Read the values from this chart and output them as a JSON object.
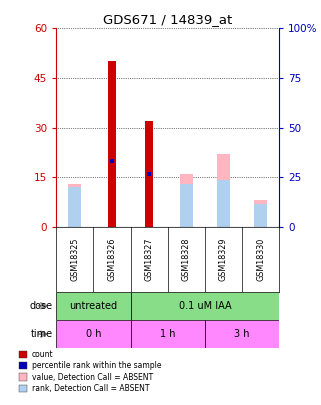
{
  "title": "GDS671 / 14839_at",
  "samples": [
    "GSM18325",
    "GSM18326",
    "GSM18327",
    "GSM18328",
    "GSM18329",
    "GSM18330"
  ],
  "red_bars": [
    0,
    50,
    32,
    0,
    0,
    0
  ],
  "blue_markers": [
    0,
    20,
    16,
    0,
    0,
    0
  ],
  "pink_bars": [
    13,
    0,
    0,
    16,
    22,
    8
  ],
  "lightblue_bars": [
    12,
    0,
    0,
    13,
    14,
    7
  ],
  "ylim_left": [
    0,
    60
  ],
  "ylim_right": [
    0,
    100
  ],
  "yticks_left": [
    0,
    15,
    30,
    45,
    60
  ],
  "yticks_right": [
    0,
    25,
    50,
    75,
    100
  ],
  "ytick_labels_left": [
    "0",
    "15",
    "30",
    "45",
    "60"
  ],
  "ytick_labels_right": [
    "0",
    "25",
    "50",
    "75",
    "100%"
  ],
  "dose_labels": [
    {
      "text": "untreated",
      "start": 0,
      "end": 2
    },
    {
      "text": "0.1 uM IAA",
      "start": 2,
      "end": 6
    }
  ],
  "time_labels": [
    {
      "text": "0 h",
      "start": 0,
      "end": 2
    },
    {
      "text": "1 h",
      "start": 2,
      "end": 4
    },
    {
      "text": "3 h",
      "start": 4,
      "end": 6
    }
  ],
  "legend_items": [
    {
      "color": "#CC0000",
      "label": "count"
    },
    {
      "color": "#0000BB",
      "label": "percentile rank within the sample"
    },
    {
      "color": "#FFB6C1",
      "label": "value, Detection Call = ABSENT"
    },
    {
      "color": "#B0D0F0",
      "label": "rank, Detection Call = ABSENT"
    }
  ],
  "left_axis_color": "#CC0000",
  "right_axis_color": "#0000BB",
  "bg_color": "#FFFFFF",
  "sample_box_color": "#C8C8C8",
  "dose_green": "#88DD88",
  "time_pink": "#FF88FF",
  "red_bar_width": 0.22,
  "pink_bar_width": 0.35
}
